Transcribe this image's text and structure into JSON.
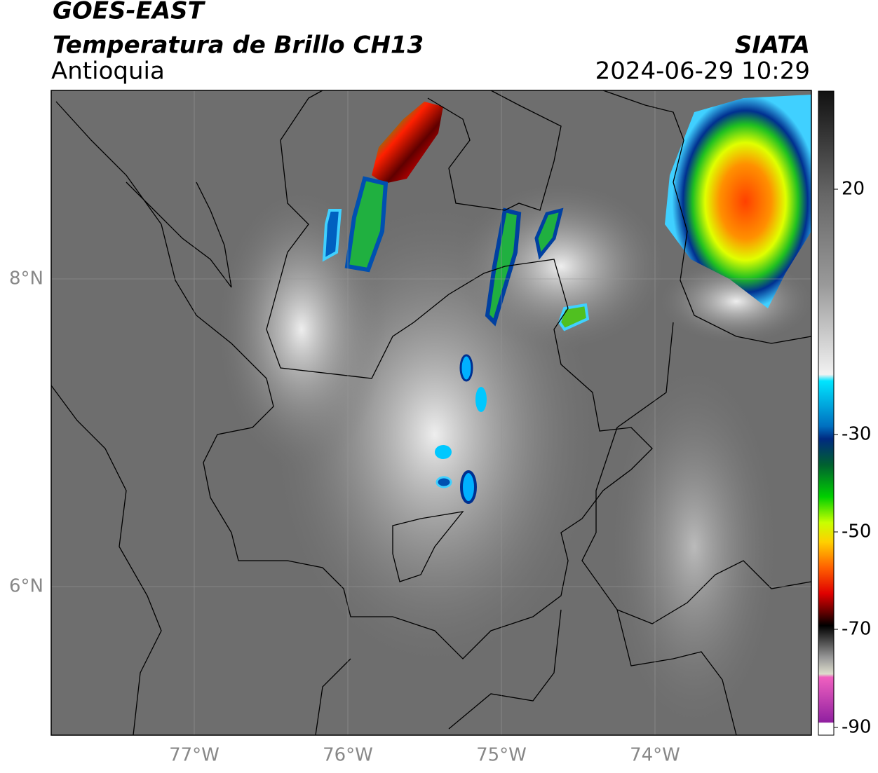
{
  "header": {
    "title": "GOES-EAST",
    "subtitle": "Temperatura de Brillo CH13",
    "region": "Antioquia",
    "source": "SIATA",
    "datetime": "2024-06-29 10:29"
  },
  "map": {
    "lon_labels": [
      "77°W",
      "76°W",
      "75°W",
      "74°W"
    ],
    "lat_labels": [
      "8°N",
      "6°N"
    ]
  },
  "colorbar": {
    "tick_labels": [
      "20",
      "-30",
      "-50",
      "-70",
      "-90"
    ]
  }
}
